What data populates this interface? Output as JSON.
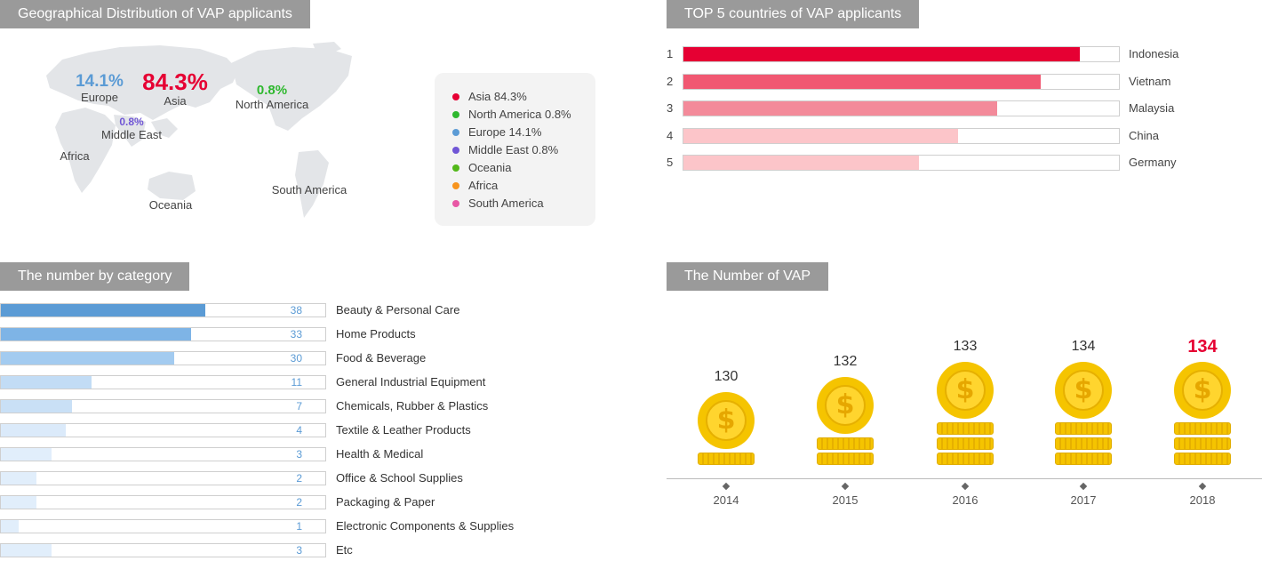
{
  "geo": {
    "title": "Geographical Distribution of VAP applicants",
    "map_labels": {
      "europe": {
        "pct": "14.1%",
        "name": "Europe"
      },
      "asia": {
        "pct": "84.3%",
        "name": "Asia"
      },
      "north_america": {
        "pct": "0.8%",
        "name": "North America"
      },
      "middle_east": {
        "pct": "0.8%",
        "name": "Middle East"
      },
      "africa": {
        "name": "Africa"
      },
      "oceania": {
        "name": "Oceania"
      },
      "south_america": {
        "name": "South America"
      }
    },
    "legend": [
      {
        "label": "Asia 84.3%",
        "color": "#e60033"
      },
      {
        "label": "North America 0.8%",
        "color": "#2eb82e"
      },
      {
        "label": "Europe 14.1%",
        "color": "#5b9bd5"
      },
      {
        "label": "Middle East 0.8%",
        "color": "#7056d6"
      },
      {
        "label": "Oceania",
        "color": "#52b81a"
      },
      {
        "label": "Africa",
        "color": "#f7941d"
      },
      {
        "label": "South America",
        "color": "#e857a5"
      }
    ]
  },
  "top5": {
    "title": "TOP 5 countries of VAP applicants",
    "items": [
      {
        "rank": "1",
        "name": "Indonesia",
        "fraction": 0.91,
        "color": "#e60033"
      },
      {
        "rank": "2",
        "name": "Vietnam",
        "fraction": 0.82,
        "color": "#f15872"
      },
      {
        "rank": "3",
        "name": "Malaysia",
        "fraction": 0.72,
        "color": "#f38a9a"
      },
      {
        "rank": "4",
        "name": "China",
        "fraction": 0.63,
        "color": "#fcc5c9"
      },
      {
        "rank": "5",
        "name": "Germany",
        "fraction": 0.54,
        "color": "#fcc5c9"
      }
    ]
  },
  "category": {
    "title": "The number by category",
    "items": [
      {
        "name": "Beauty & Personal Care",
        "value": "38",
        "fraction": 0.63,
        "color": "#5b9bd5"
      },
      {
        "name": "Home Products",
        "value": "33",
        "fraction": 0.585,
        "color": "#7eb4e6"
      },
      {
        "name": "Food & Beverage",
        "value": "30",
        "fraction": 0.535,
        "color": "#a3cbf0"
      },
      {
        "name": "General Industrial Equipment",
        "value": "11",
        "fraction": 0.28,
        "color": "#c2dcf5"
      },
      {
        "name": "Chemicals, Rubber & Plastics",
        "value": "7",
        "fraction": 0.22,
        "color": "#c9e0f6"
      },
      {
        "name": "Textile & Leather Products",
        "value": "4",
        "fraction": 0.2,
        "color": "#dbeafa"
      },
      {
        "name": "Health & Medical",
        "value": "3",
        "fraction": 0.155,
        "color": "#e1eefb"
      },
      {
        "name": "Office & School Supplies",
        "value": "2",
        "fraction": 0.11,
        "color": "#e1eefb"
      },
      {
        "name": "Packaging & Paper",
        "value": "2",
        "fraction": 0.11,
        "color": "#e1eefb"
      },
      {
        "name": "Electronic Components & Supplies",
        "value": "1",
        "fraction": 0.055,
        "color": "#e1eefb"
      },
      {
        "name": "Etc",
        "value": "3",
        "fraction": 0.155,
        "color": "#e1eefb"
      }
    ]
  },
  "vap": {
    "title": "The Number of VAP",
    "coin_symbol": "$",
    "items": [
      {
        "year": "2014",
        "value": "130",
        "stack": 1,
        "highlight": false
      },
      {
        "year": "2015",
        "value": "132",
        "stack": 2,
        "highlight": false
      },
      {
        "year": "2016",
        "value": "133",
        "stack": 3,
        "highlight": false
      },
      {
        "year": "2017",
        "value": "134",
        "stack": 3,
        "highlight": false
      },
      {
        "year": "2018",
        "value": "134",
        "stack": 3,
        "highlight": true
      }
    ]
  }
}
